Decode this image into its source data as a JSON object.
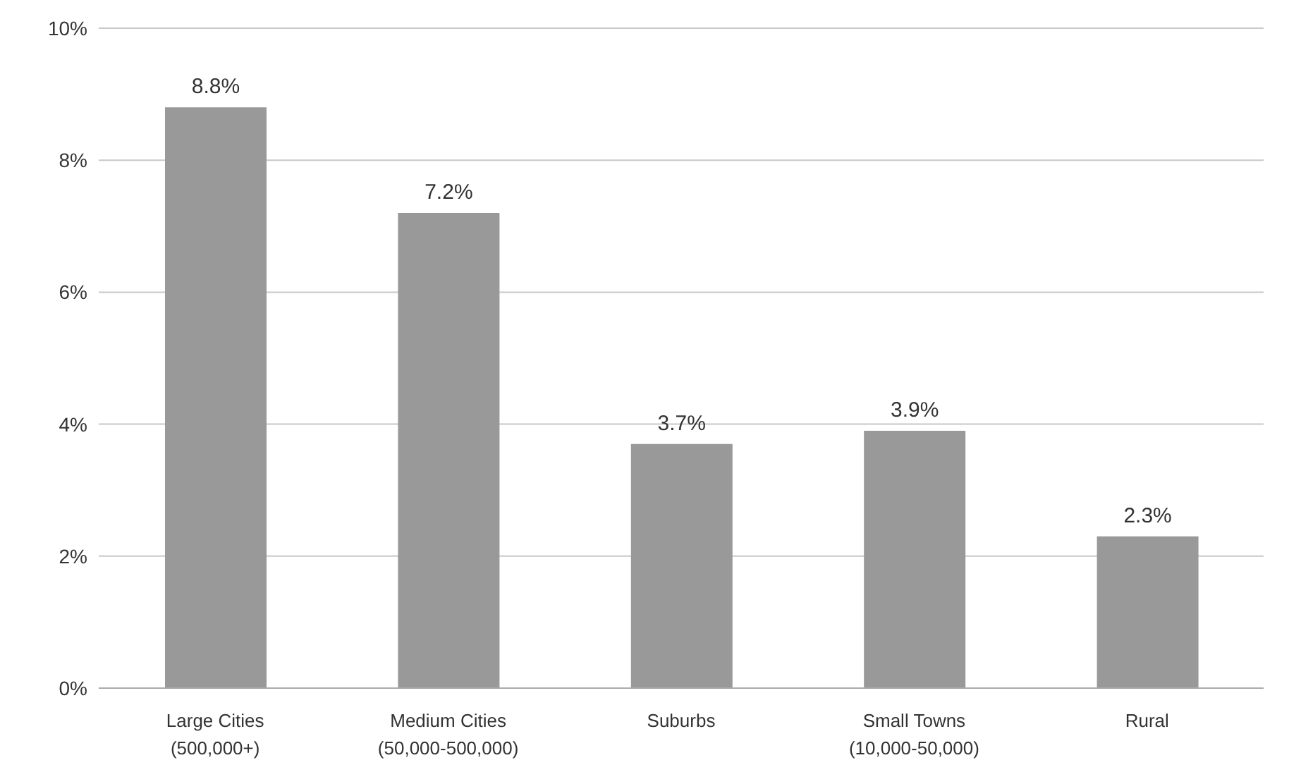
{
  "chart_data": {
    "type": "bar",
    "categories": [
      "Large Cities\n(500,000+)",
      "Medium Cities\n(50,000-500,000)",
      "Suburbs",
      "Small Towns\n(10,000-50,000)",
      "Rural"
    ],
    "values": [
      8.8,
      7.2,
      3.7,
      3.9,
      2.3
    ],
    "value_labels": [
      "8.8%",
      "7.2%",
      "3.7%",
      "3.9%",
      "2.3%"
    ],
    "color": "#999999",
    "ylim": [
      0,
      10
    ],
    "yticks": [
      {
        "value": 0,
        "label": "0%"
      },
      {
        "value": 2,
        "label": "2%"
      },
      {
        "value": 4,
        "label": "4%"
      },
      {
        "value": 6,
        "label": "6%"
      },
      {
        "value": 8,
        "label": "8%"
      },
      {
        "value": 10,
        "label": "10%"
      }
    ],
    "grid": "y",
    "legend": false
  }
}
